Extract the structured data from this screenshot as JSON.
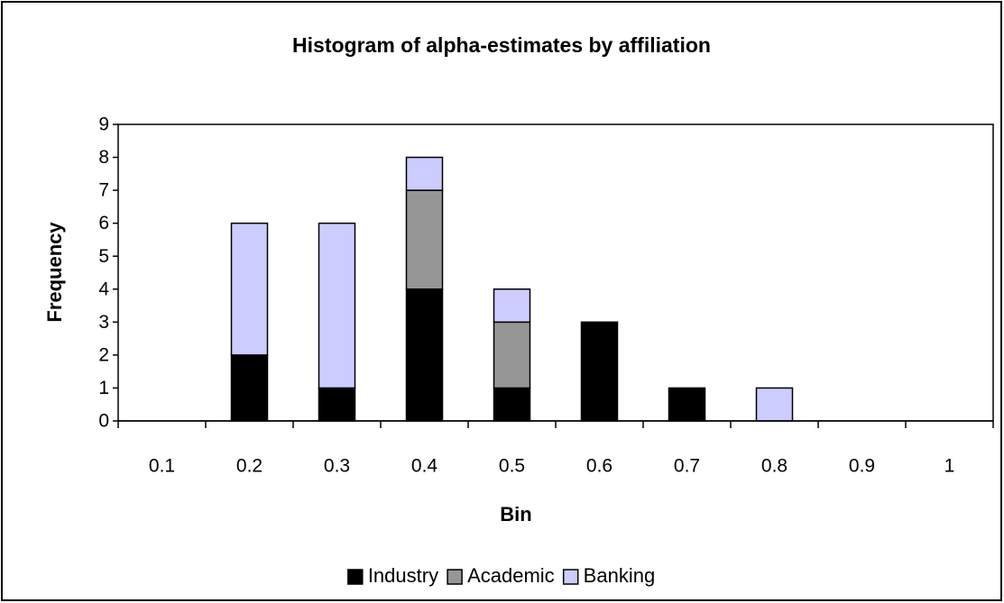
{
  "chart_data": {
    "type": "stacked_bar",
    "title": "Histogram of alpha-estimates by affiliation",
    "x_label": "Bin",
    "y_label": "Frequency",
    "categories": [
      "0.1",
      "0.2",
      "0.3",
      "0.4",
      "0.5",
      "0.6",
      "0.7",
      "0.8",
      "0.9",
      "1"
    ],
    "series": [
      {
        "name": "Industry",
        "color": "#000000",
        "values": [
          0,
          2,
          1,
          4,
          1,
          3,
          1,
          0,
          0,
          0
        ]
      },
      {
        "name": "Academic",
        "color": "#969696",
        "values": [
          0,
          0,
          0,
          3,
          2,
          0,
          0,
          0,
          0,
          0
        ]
      },
      {
        "name": "Banking",
        "color": "#ccccff",
        "values": [
          0,
          4,
          5,
          1,
          1,
          0,
          0,
          1,
          0,
          0
        ]
      }
    ],
    "ylim": [
      0,
      9
    ],
    "yticks": [
      0,
      1,
      2,
      3,
      4,
      5,
      6,
      7,
      8,
      9
    ],
    "grid": false,
    "legend": "bottom"
  }
}
